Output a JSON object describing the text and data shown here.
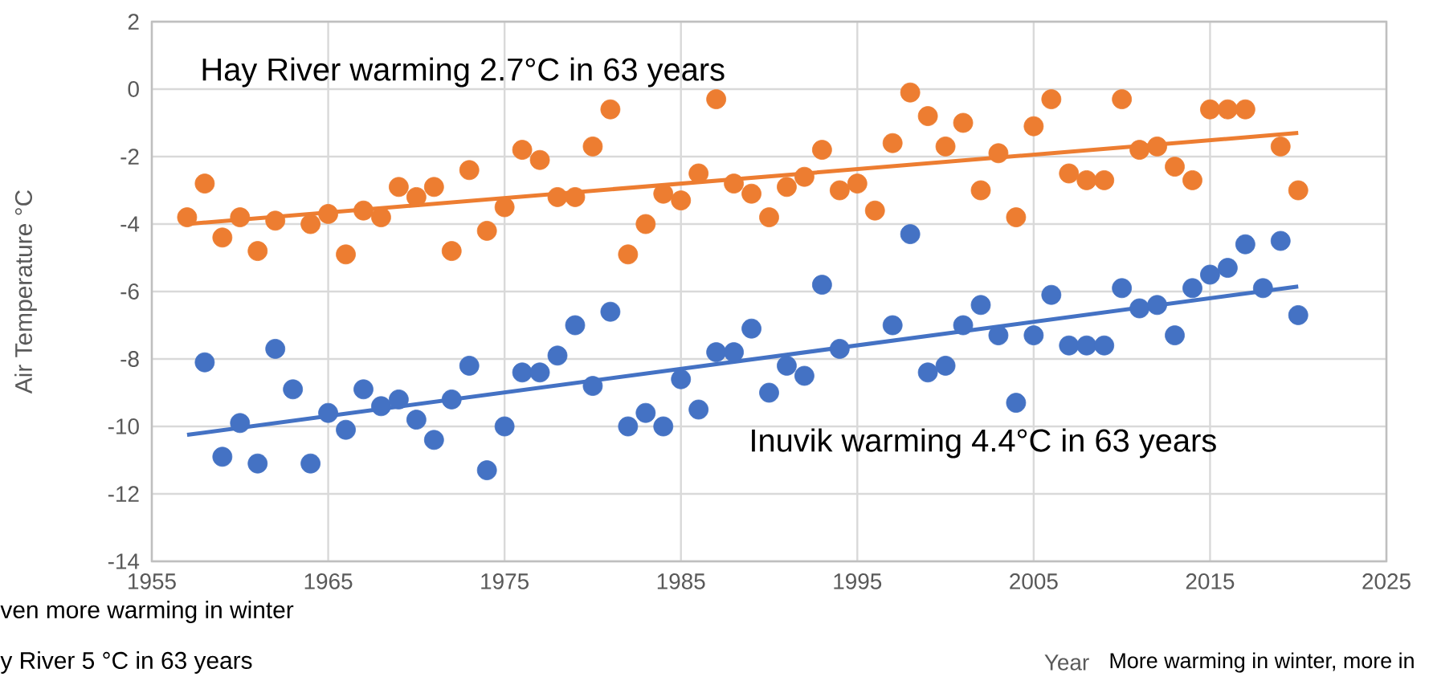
{
  "chart_data": {
    "type": "scatter",
    "xlabel": "Year",
    "ylabel": "Air Temperature °C",
    "xlim": [
      1955,
      2025
    ],
    "xticks": [
      1955,
      1965,
      1975,
      1985,
      1995,
      2005,
      2015,
      2025
    ],
    "ylim": [
      -14,
      2
    ],
    "yticks": [
      -14,
      -12,
      -10,
      -8,
      -6,
      -4,
      -2,
      0,
      2
    ],
    "grid": true,
    "marker": "circle",
    "annotations": [
      "Hay River warming 2.7°C in 63 years",
      "Inuvik warming 4.4°C in 63 years",
      "ven more warming in winter",
      "y River 5 °C in 63 years",
      "More warming in winter, more in"
    ],
    "series": [
      {
        "color": "#ed7d31",
        "x": [
          1957,
          1958,
          1959,
          1960,
          1961,
          1962,
          1964,
          1965,
          1966,
          1967,
          1968,
          1969,
          1970,
          1971,
          1972,
          1973,
          1974,
          1975,
          1976,
          1977,
          1978,
          1979,
          1980,
          1981,
          1982,
          1983,
          1984,
          1985,
          1986,
          1987,
          1988,
          1989,
          1990,
          1991,
          1992,
          1993,
          1994,
          1995,
          1996,
          1997,
          1998,
          1999,
          2000,
          2001,
          2002,
          2003,
          2004,
          2005,
          2006,
          2007,
          2008,
          2009,
          2010,
          2011,
          2012,
          2013,
          2014,
          2015,
          2016,
          2017,
          2019,
          2020
        ],
        "values": [
          -3.8,
          -2.8,
          -4.4,
          -3.8,
          -4.8,
          -3.9,
          -4.0,
          -3.7,
          -4.9,
          -3.6,
          -3.8,
          -2.9,
          -3.2,
          -2.9,
          -4.8,
          -2.4,
          -4.2,
          -3.5,
          -1.8,
          -2.1,
          -3.2,
          -3.2,
          -1.7,
          -0.6,
          -4.9,
          -4.0,
          -3.1,
          -3.3,
          -2.5,
          -0.3,
          -2.8,
          -3.1,
          -3.8,
          -2.9,
          -2.6,
          -1.8,
          -3.0,
          -2.8,
          -3.6,
          -1.6,
          -0.1,
          -0.8,
          -1.7,
          -1.0,
          -3.0,
          -1.9,
          -3.8,
          -1.1,
          -0.3,
          -2.5,
          -2.7,
          -2.7,
          -0.3,
          -1.8,
          -1.7,
          -2.3,
          -2.7,
          -0.6,
          -0.6,
          -0.6,
          -1.7,
          -3.0
        ]
      },
      {
        "color": "#4472c4",
        "x": [
          1958,
          1959,
          1960,
          1961,
          1962,
          1963,
          1964,
          1965,
          1966,
          1967,
          1968,
          1969,
          1970,
          1971,
          1972,
          1973,
          1974,
          1975,
          1976,
          1977,
          1978,
          1979,
          1980,
          1981,
          1982,
          1983,
          1984,
          1985,
          1986,
          1987,
          1988,
          1989,
          1990,
          1991,
          1992,
          1993,
          1994,
          1997,
          1998,
          1999,
          2000,
          2001,
          2002,
          2003,
          2004,
          2005,
          2006,
          2007,
          2008,
          2009,
          2010,
          2011,
          2012,
          2013,
          2014,
          2015,
          2016,
          2017,
          2018,
          2019,
          2020
        ],
        "values": [
          -8.1,
          -10.9,
          -9.9,
          -11.1,
          -7.7,
          -8.9,
          -11.1,
          -9.6,
          -10.1,
          -8.9,
          -9.4,
          -9.2,
          -9.8,
          -10.4,
          -9.2,
          -8.2,
          -11.3,
          -10.0,
          -8.4,
          -8.4,
          -7.9,
          -7.0,
          -8.8,
          -6.6,
          -10.0,
          -9.6,
          -10.0,
          -8.6,
          -9.5,
          -7.8,
          -7.8,
          -7.1,
          -9.0,
          -8.2,
          -8.5,
          -5.8,
          -7.7,
          -7.0,
          -4.3,
          -8.4,
          -8.2,
          -7.0,
          -6.4,
          -7.3,
          -9.3,
          -7.3,
          -6.1,
          -7.6,
          -7.6,
          -7.6,
          -5.9,
          -6.5,
          -6.4,
          -7.3,
          -5.9,
          -5.5,
          -5.3,
          -4.6,
          -5.9,
          -4.5,
          -6.7
        ]
      },
      {
        "type": "line",
        "marker": "none",
        "color": "#ed7d31",
        "x": [
          1957,
          2020
        ],
        "values": [
          -4.0,
          -1.3
        ]
      },
      {
        "type": "line",
        "marker": "none",
        "color": "#4472c4",
        "x": [
          1957,
          2020
        ],
        "values": [
          -10.25,
          -5.85
        ]
      }
    ]
  }
}
